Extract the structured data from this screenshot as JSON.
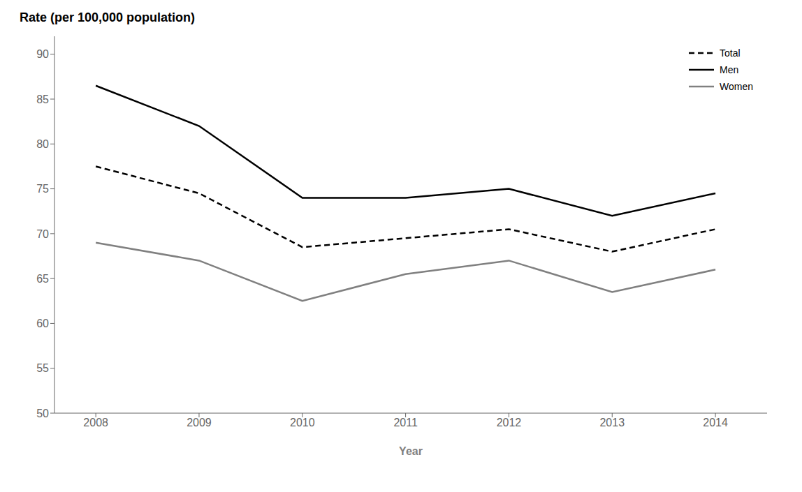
{
  "chart_data": {
    "type": "line",
    "title": "Rate (per 100,000 population)",
    "xlabel": "Year",
    "x": [
      2008,
      2009,
      2010,
      2011,
      2012,
      2013,
      2014
    ],
    "xlim": [
      2007.6,
      2014.5
    ],
    "xticks": [
      2008,
      2009,
      2010,
      2011,
      2012,
      2013,
      2014
    ],
    "ylim": [
      50,
      92
    ],
    "yticks": [
      50,
      55,
      60,
      65,
      70,
      75,
      80,
      85,
      90
    ],
    "grid": false,
    "legend": "upper right",
    "series": [
      {
        "name": "Total",
        "color": "#000000",
        "line_style": "dashed",
        "values": [
          77.5,
          74.5,
          68.5,
          69.5,
          70.5,
          68.0,
          70.5
        ]
      },
      {
        "name": "Men",
        "color": "#000000",
        "line_style": "solid",
        "values": [
          86.5,
          82.0,
          74.0,
          74.0,
          75.0,
          72.0,
          74.5
        ]
      },
      {
        "name": "Women",
        "color": "#808080",
        "line_style": "solid",
        "values": [
          69.0,
          67.0,
          62.5,
          65.5,
          67.0,
          63.5,
          66.0
        ]
      }
    ]
  }
}
